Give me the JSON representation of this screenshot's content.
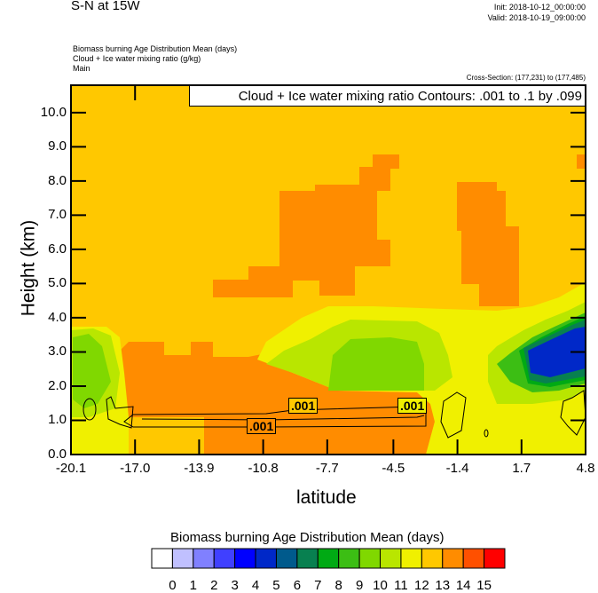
{
  "header": {
    "title": "S-N at 15W",
    "init": "Init: 2018-10-12_00:00:00",
    "valid": "Valid: 2018-10-19_09:00:00",
    "subtitles": [
      "Biomass burning Age Distribution Mean   (days)",
      "Cloud + Ice water mixing ratio   (g/kg)",
      "Main"
    ],
    "cross_section": "Cross-Section: (177,231) to (177,485)"
  },
  "chart_data": {
    "type": "heatmap",
    "title": "S-N at 15W",
    "xlabel": "latitude",
    "ylabel": "Height (km)",
    "xlim": [
      -20.1,
      4.8
    ],
    "ylim": [
      0,
      10.8
    ],
    "xticks": [
      "-20.1",
      "-17.0",
      "-13.9",
      "-10.8",
      "-7.7",
      "-4.5",
      "-1.4",
      "1.7",
      "4.8"
    ],
    "yticks": [
      "0.0",
      "1.0",
      "2.0",
      "3.0",
      "4.0",
      "5.0",
      "6.0",
      "7.0",
      "8.0",
      "9.0",
      "10.0"
    ],
    "contour_info": "Cloud + Ice water mixing ratio Contours: .001 to .1 by .099",
    "contour_labels": [
      ".001",
      ".001",
      ".001"
    ],
    "colorbar": {
      "title": "Biomass burning Age Distribution Mean  (days)",
      "levels": [
        "0",
        "1",
        "2",
        "3",
        "4",
        "5",
        "6",
        "7",
        "8",
        "9",
        "10",
        "11",
        "12",
        "13",
        "14",
        "15"
      ],
      "colors": [
        "#ffffff",
        "#c0c0ff",
        "#8080ff",
        "#4040ff",
        "#0000ff",
        "#0028c8",
        "#005a8c",
        "#088050",
        "#00aa14",
        "#3cbe14",
        "#80d800",
        "#b9e600",
        "#f0f000",
        "#ffc800",
        "#ff8c00",
        "#ff5000",
        "#ff0000"
      ]
    }
  }
}
